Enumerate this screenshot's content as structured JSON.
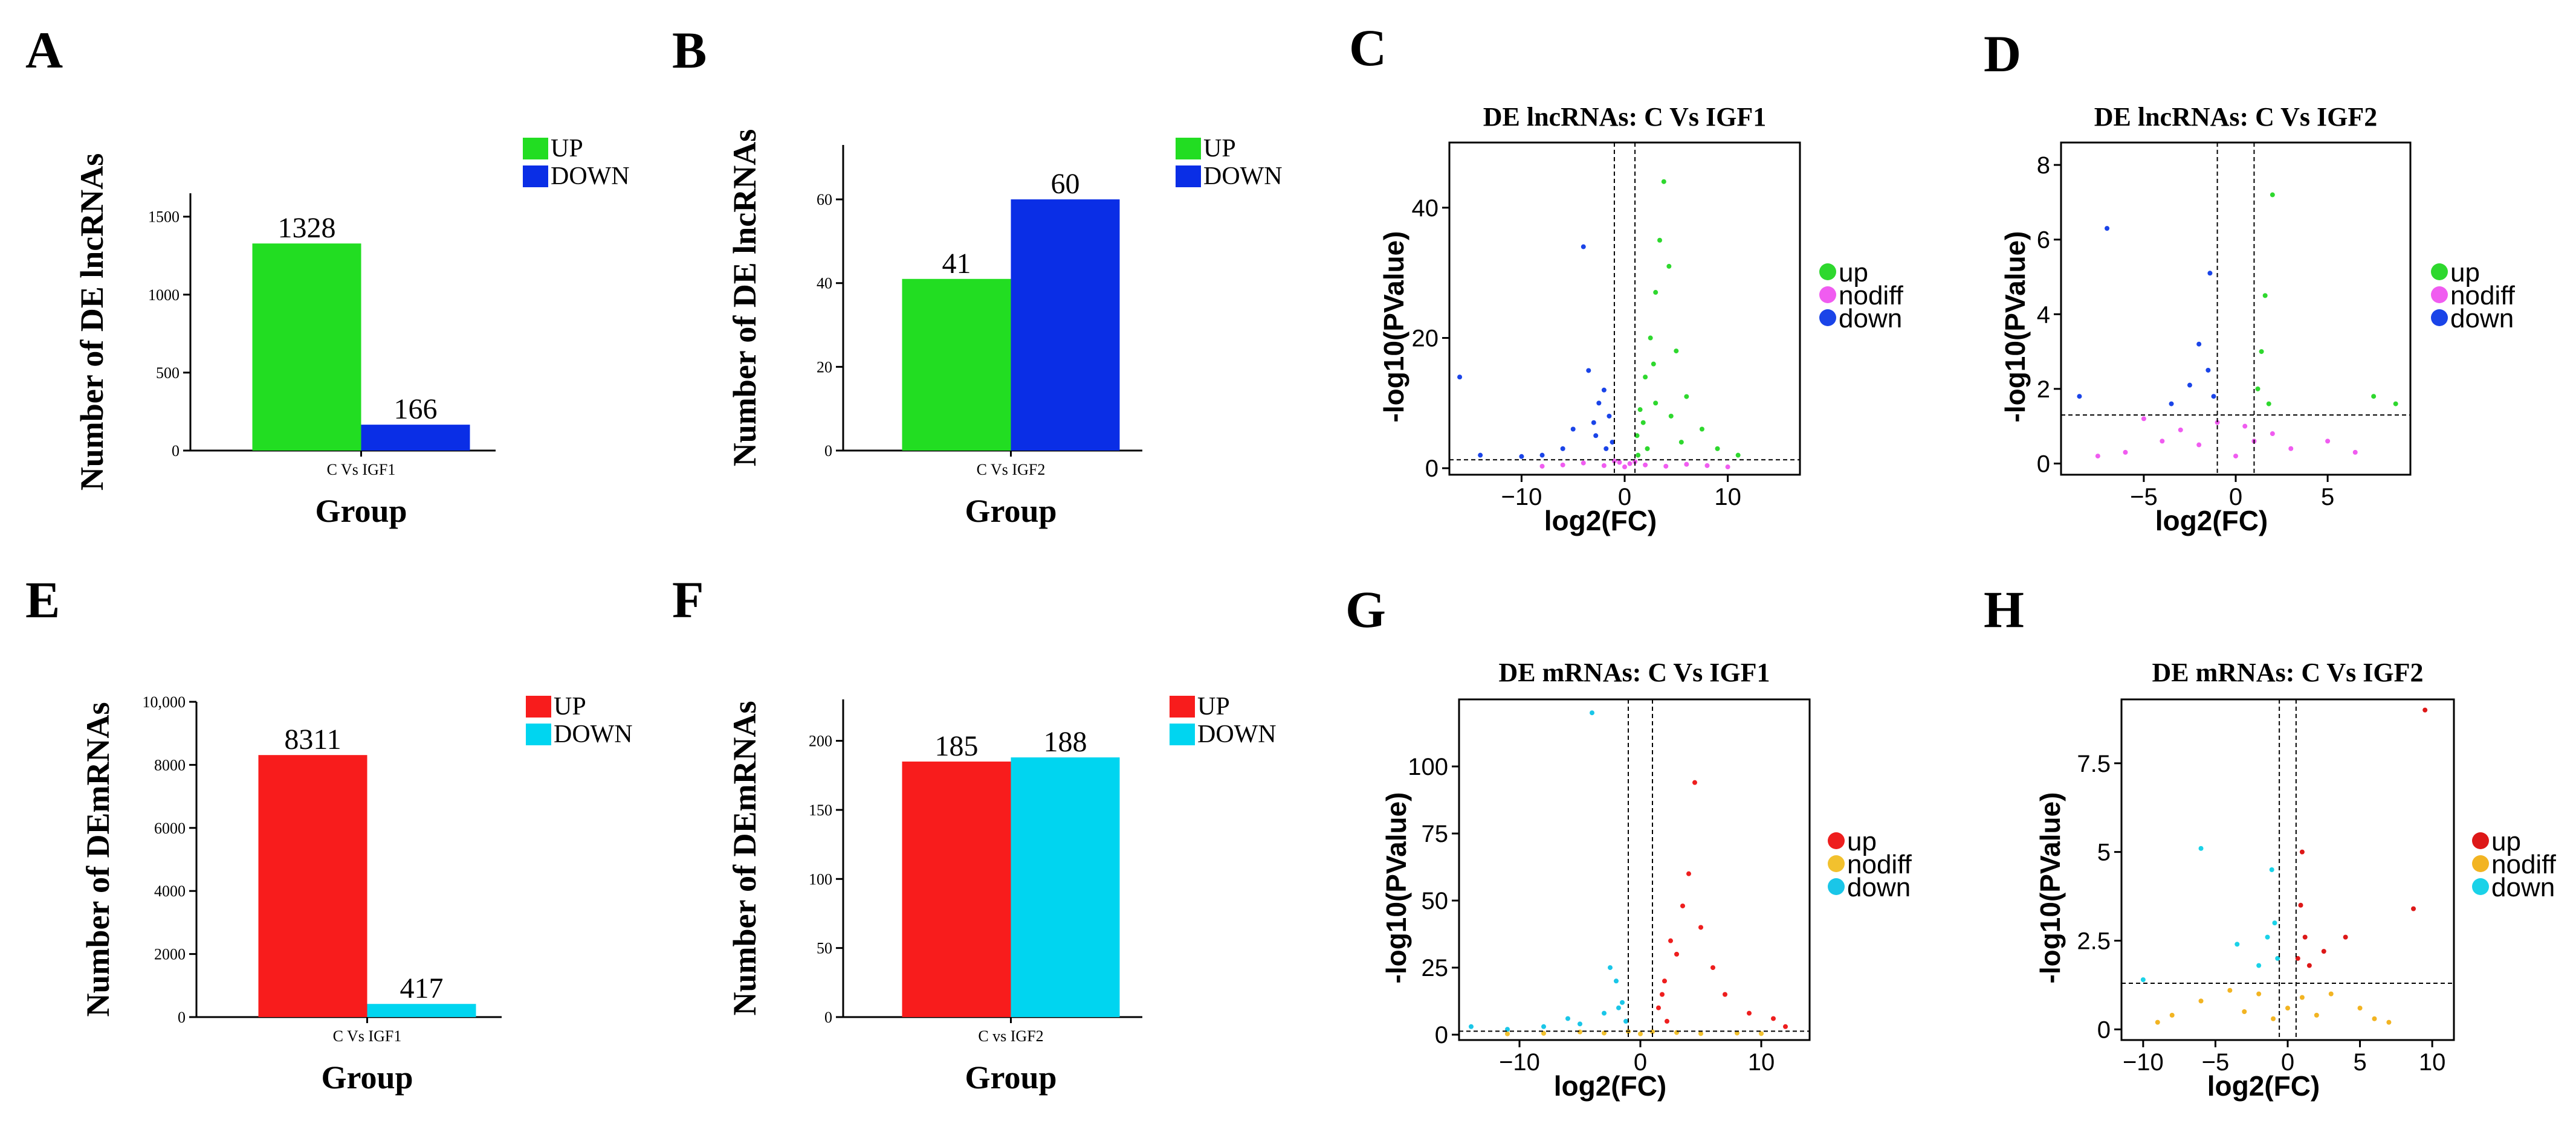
{
  "chart_data": [
    {
      "id": "A",
      "type": "bar",
      "panel_label": "A",
      "categories": [
        "C Vs IGF1"
      ],
      "series": [
        {
          "name": "UP",
          "color": "#22dd22",
          "values": [
            1328
          ]
        },
        {
          "name": "DOWN",
          "color": "#0a2ee6",
          "values": [
            166
          ]
        }
      ],
      "ylabel": "Number of DE lncRNAs",
      "xlabel": "Group",
      "ylim": [
        0,
        1650
      ],
      "yticks": [
        0,
        500,
        1000,
        1500
      ],
      "ytick_labels": [
        "0",
        "500",
        "1000",
        "1500"
      ]
    },
    {
      "id": "B",
      "type": "bar",
      "panel_label": "B",
      "categories": [
        "C Vs IGF2"
      ],
      "series": [
        {
          "name": "UP",
          "color": "#22dd22",
          "values": [
            41
          ]
        },
        {
          "name": "DOWN",
          "color": "#0a2ee6",
          "values": [
            60
          ]
        }
      ],
      "ylabel": "Number of DE lncRNAs",
      "xlabel": "Group",
      "ylim": [
        0,
        73
      ],
      "yticks": [
        0,
        20,
        40,
        60
      ],
      "ytick_labels": [
        "0",
        "20",
        "40",
        "60"
      ]
    },
    {
      "id": "E",
      "type": "bar",
      "panel_label": "E",
      "categories": [
        "C Vs IGF1"
      ],
      "series": [
        {
          "name": "UP",
          "color": "#f81c1c",
          "values": [
            8311
          ]
        },
        {
          "name": "DOWN",
          "color": "#00d5f0",
          "values": [
            417
          ]
        }
      ],
      "ylabel": "Number of DEmRNAs",
      "xlabel": "Group",
      "ylim": [
        0,
        10000
      ],
      "yticks": [
        0,
        2000,
        4000,
        6000,
        8000,
        10000
      ],
      "ytick_labels": [
        "0",
        "2000",
        "4000",
        "6000",
        "8000",
        "10,000"
      ]
    },
    {
      "id": "F",
      "type": "bar",
      "panel_label": "F",
      "categories": [
        "C vs IGF2"
      ],
      "series": [
        {
          "name": "UP",
          "color": "#f81c1c",
          "values": [
            185
          ]
        },
        {
          "name": "DOWN",
          "color": "#00d5f0",
          "values": [
            188
          ]
        }
      ],
      "ylabel": "Number of DEmRNAs",
      "xlabel": "Group",
      "ylim": [
        0,
        230
      ],
      "yticks": [
        0,
        50,
        100,
        150,
        200
      ],
      "ytick_labels": [
        "0",
        "50",
        "100",
        "150",
        "200"
      ]
    },
    {
      "id": "C",
      "type": "scatter",
      "panel_label": "C",
      "title": "DE lncRNAs: C Vs IGF1",
      "xlabel": "log2(FC)",
      "ylabel": "-log10(PValue)",
      "xlim": [
        -17,
        17
      ],
      "ylim": [
        -1,
        50
      ],
      "xticks": [
        -10,
        0,
        10
      ],
      "xtick_labels": [
        "−10",
        "0",
        "10"
      ],
      "yticks": [
        0,
        20,
        40
      ],
      "ytick_labels": [
        "0",
        "20",
        "40"
      ],
      "vlines": [
        -1,
        1
      ],
      "hline": 1.3,
      "groups": [
        {
          "name": "up",
          "color": "#2ed82e",
          "points": [
            [
              1.2,
              5
            ],
            [
              1.5,
              9
            ],
            [
              2,
              14
            ],
            [
              2.5,
              20
            ],
            [
              3,
              27
            ],
            [
              3.4,
              35
            ],
            [
              3.8,
              44
            ],
            [
              4.3,
              31
            ],
            [
              5,
              18
            ],
            [
              6,
              11
            ],
            [
              7.5,
              6
            ],
            [
              9,
              3
            ],
            [
              11,
              2
            ],
            [
              2.2,
              3
            ],
            [
              1.8,
              7
            ],
            [
              3,
              10
            ],
            [
              4.5,
              8
            ],
            [
              5.5,
              4
            ],
            [
              1.3,
              2
            ],
            [
              2.8,
              16
            ]
          ]
        },
        {
          "name": "nodiff",
          "color": "#f05cf0",
          "points": [
            [
              -6,
              0.5
            ],
            [
              -4,
              0.8
            ],
            [
              -2,
              0.4
            ],
            [
              -0.5,
              0.9
            ],
            [
              0,
              0.2
            ],
            [
              0.5,
              0.7
            ],
            [
              2,
              0.5
            ],
            [
              4,
              0.3
            ],
            [
              6,
              0.6
            ],
            [
              8,
              0.4
            ],
            [
              10,
              0.2
            ],
            [
              -8,
              0.3
            ],
            [
              -1,
              1.1
            ],
            [
              1,
              1.0
            ]
          ]
        },
        {
          "name": "down",
          "color": "#1a44e8",
          "points": [
            [
              -1.2,
              4
            ],
            [
              -1.5,
              8
            ],
            [
              -2,
              12
            ],
            [
              -2.5,
              10
            ],
            [
              -3,
              7
            ],
            [
              -3.5,
              15
            ],
            [
              -4,
              34
            ],
            [
              -5,
              6
            ],
            [
              -6,
              3
            ],
            [
              -8,
              2
            ],
            [
              -10,
              1.8
            ],
            [
              -16,
              14
            ],
            [
              -14,
              2
            ],
            [
              -1.8,
              3
            ],
            [
              -2.8,
              5
            ]
          ]
        }
      ]
    },
    {
      "id": "D",
      "type": "scatter",
      "panel_label": "D",
      "title": "DE lncRNAs: C Vs IGF2",
      "xlabel": "log2(FC)",
      "ylabel": "-log10(PValue)",
      "xlim": [
        -9.5,
        9.5
      ],
      "ylim": [
        -0.3,
        8.6
      ],
      "xticks": [
        -5,
        0,
        5
      ],
      "xtick_labels": [
        "−5",
        "0",
        "5"
      ],
      "yticks": [
        0,
        2,
        4,
        6,
        8
      ],
      "ytick_labels": [
        "0",
        "2",
        "4",
        "6",
        "8"
      ],
      "vlines": [
        -1,
        1
      ],
      "hline": 1.3,
      "groups": [
        {
          "name": "up",
          "color": "#2ed82e",
          "points": [
            [
              1.2,
              2
            ],
            [
              1.4,
              3
            ],
            [
              1.6,
              4.5
            ],
            [
              2,
              7.2
            ],
            [
              1.8,
              1.6
            ],
            [
              7.5,
              1.8
            ],
            [
              8.7,
              1.6
            ]
          ]
        },
        {
          "name": "nodiff",
          "color": "#f05cf0",
          "points": [
            [
              -6,
              0.3
            ],
            [
              -4,
              0.6
            ],
            [
              -3,
              0.9
            ],
            [
              -2,
              0.5
            ],
            [
              -1,
              1.1
            ],
            [
              0,
              0.2
            ],
            [
              0.5,
              1.0
            ],
            [
              1,
              0.6
            ],
            [
              2,
              0.8
            ],
            [
              3,
              0.4
            ],
            [
              5,
              0.6
            ],
            [
              6.5,
              0.3
            ],
            [
              -7.5,
              0.2
            ],
            [
              -5,
              1.2
            ]
          ]
        },
        {
          "name": "down",
          "color": "#1a44e8",
          "points": [
            [
              -1.2,
              1.8
            ],
            [
              -1.5,
              2.5
            ],
            [
              -2,
              3.2
            ],
            [
              -2.5,
              2.1
            ],
            [
              -1.4,
              5.1
            ],
            [
              -7,
              6.3
            ],
            [
              -8.5,
              1.8
            ],
            [
              -3.5,
              1.6
            ]
          ]
        }
      ]
    },
    {
      "id": "G",
      "type": "scatter",
      "panel_label": "G",
      "title": "DE mRNAs: C Vs IGF1",
      "xlabel": "log2(FC)",
      "ylabel": "-log10(PValue)",
      "xlim": [
        -15,
        14
      ],
      "ylim": [
        -2,
        125
      ],
      "xticks": [
        -10,
        0,
        10
      ],
      "xtick_labels": [
        "−10",
        "0",
        "10"
      ],
      "yticks": [
        0,
        25,
        50,
        75,
        100
      ],
      "ytick_labels": [
        "0",
        "25",
        "50",
        "75",
        "100"
      ],
      "vlines": [
        -1,
        1
      ],
      "hline": 1.3,
      "groups": [
        {
          "name": "up",
          "color": "#ee1e1e",
          "points": [
            [
              1.5,
              10
            ],
            [
              2,
              20
            ],
            [
              2.5,
              35
            ],
            [
              3,
              30
            ],
            [
              3.5,
              48
            ],
            [
              4,
              60
            ],
            [
              4.5,
              94
            ],
            [
              5,
              40
            ],
            [
              6,
              25
            ],
            [
              7,
              15
            ],
            [
              9,
              8
            ],
            [
              11,
              6
            ],
            [
              12,
              3
            ],
            [
              2.2,
              5
            ],
            [
              1.8,
              15
            ]
          ]
        },
        {
          "name": "nodiff",
          "color": "#f2c12e",
          "points": [
            [
              -8,
              0.5
            ],
            [
              -5,
              1.0
            ],
            [
              -3,
              0.6
            ],
            [
              -1,
              1.2
            ],
            [
              0,
              0.3
            ],
            [
              1,
              1.1
            ],
            [
              3,
              0.8
            ],
            [
              5,
              0.4
            ],
            [
              8,
              0.6
            ],
            [
              -11,
              0.3
            ],
            [
              10,
              0.4
            ]
          ]
        },
        {
          "name": "down",
          "color": "#1ac6e8",
          "points": [
            [
              -1.2,
              5
            ],
            [
              -1.5,
              12
            ],
            [
              -2,
              20
            ],
            [
              -2.5,
              25
            ],
            [
              -3,
              8
            ],
            [
              -4,
              120
            ],
            [
              -5,
              4
            ],
            [
              -6,
              6
            ],
            [
              -8,
              3
            ],
            [
              -11,
              2
            ],
            [
              -14,
              3
            ],
            [
              -1.8,
              10
            ]
          ]
        }
      ]
    },
    {
      "id": "H",
      "type": "scatter",
      "panel_label": "H",
      "title": "DE mRNAs: C Vs IGF2",
      "xlabel": "log2(FC)",
      "ylabel": "-log10(PValue)",
      "xlim": [
        -11.5,
        11.5
      ],
      "ylim": [
        -0.3,
        9.3
      ],
      "xticks": [
        -10,
        -5,
        0,
        5,
        10
      ],
      "xtick_labels": [
        "−10",
        "−5",
        "0",
        "5",
        "10"
      ],
      "yticks": [
        0,
        2.5,
        5,
        7.5
      ],
      "ytick_labels": [
        "0",
        "2.5",
        "5",
        "7.5"
      ],
      "vlines": [
        -0.58,
        0.58
      ],
      "hline": 1.3,
      "groups": [
        {
          "name": "up",
          "color": "#dd1818",
          "points": [
            [
              0.7,
              2
            ],
            [
              0.9,
              3.5
            ],
            [
              1,
              5
            ],
            [
              1.2,
              2.6
            ],
            [
              1.5,
              1.8
            ],
            [
              2.5,
              2.2
            ],
            [
              4,
              2.6
            ],
            [
              8.7,
              3.4
            ],
            [
              9.5,
              9
            ]
          ]
        },
        {
          "name": "nodiff",
          "color": "#f2b422",
          "points": [
            [
              -8,
              0.4
            ],
            [
              -6,
              0.8
            ],
            [
              -4,
              1.1
            ],
            [
              -3,
              0.5
            ],
            [
              -2,
              1.0
            ],
            [
              -1,
              0.3
            ],
            [
              0,
              0.6
            ],
            [
              1,
              0.9
            ],
            [
              2,
              0.4
            ],
            [
              3,
              1.0
            ],
            [
              5,
              0.6
            ],
            [
              6,
              0.3
            ],
            [
              7,
              0.2
            ],
            [
              -9,
              0.2
            ]
          ]
        },
        {
          "name": "down",
          "color": "#1ad2e8",
          "points": [
            [
              -0.7,
              2
            ],
            [
              -0.9,
              3
            ],
            [
              -1.1,
              4.5
            ],
            [
              -1.4,
              2.6
            ],
            [
              -2,
              1.8
            ],
            [
              -3.5,
              2.4
            ],
            [
              -6,
              5.1
            ],
            [
              -10,
              1.4
            ]
          ]
        }
      ]
    }
  ]
}
